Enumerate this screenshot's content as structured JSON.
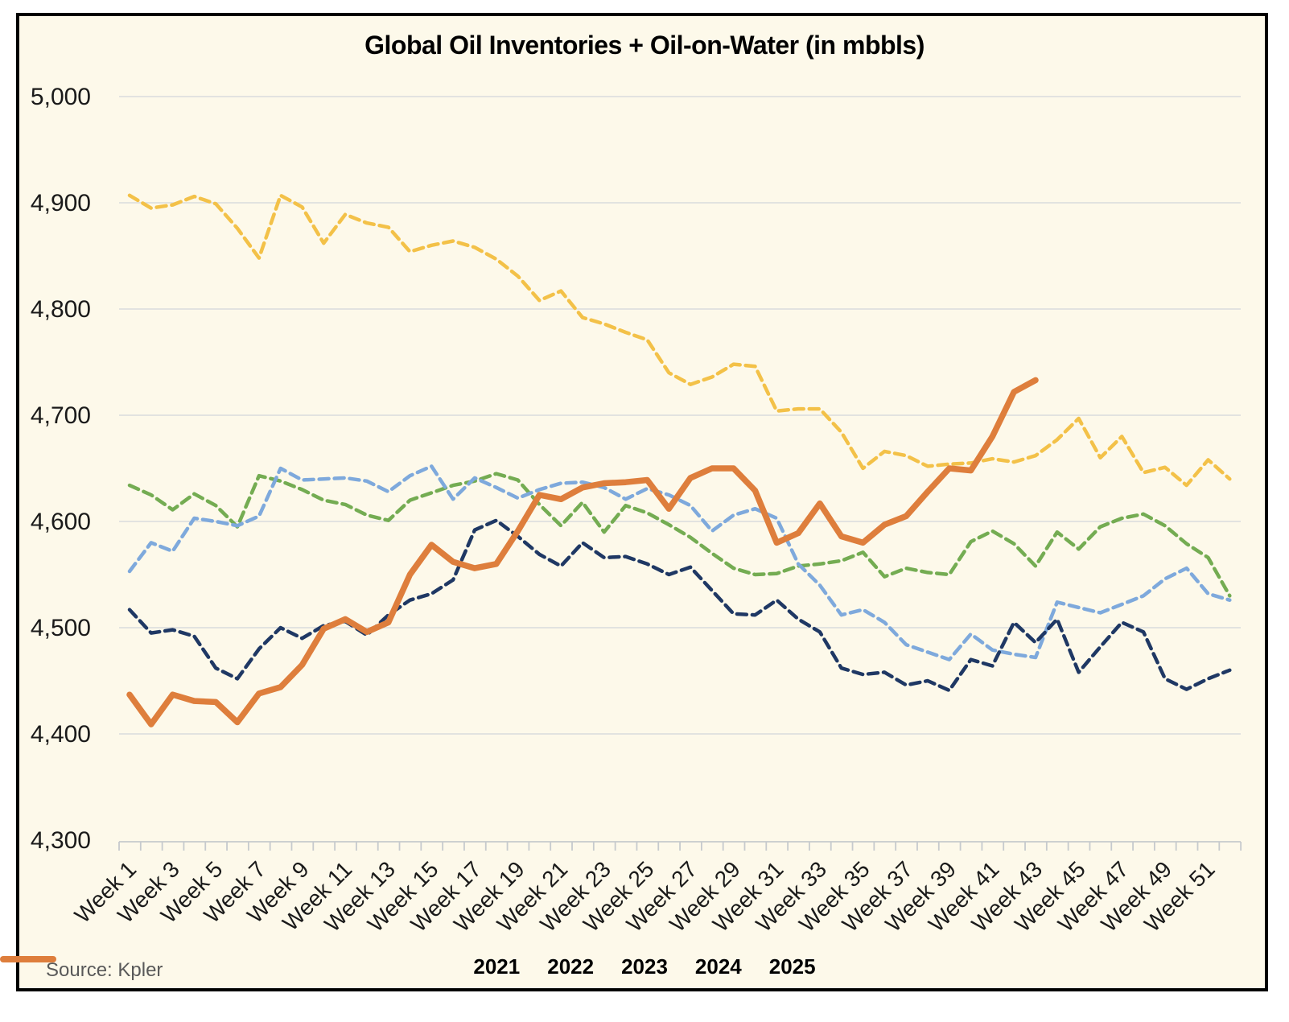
{
  "source": "Source: Kpler",
  "colors": {
    "background": "#FDF9EA",
    "frame_border": "#000000",
    "gridline": "#DADCDD",
    "axis": "#C6CACD",
    "title_text": "#000000",
    "tick_label_text": "#1A1A1A",
    "source_text": "#595959"
  },
  "chart_data": {
    "type": "line",
    "title": "Global Oil Inventories + Oil-on-Water (in mbbls)",
    "xlabel": "",
    "ylabel": "",
    "ylim": [
      4300,
      5000
    ],
    "grid": true,
    "legend_position": "bottom",
    "y_ticks": [
      4300,
      4400,
      4500,
      4600,
      4700,
      4800,
      4900,
      5000
    ],
    "y_tick_labels": [
      "4,300",
      "4,400",
      "4,500",
      "4,600",
      "4,700",
      "4,800",
      "4,900",
      "5,000"
    ],
    "x": [
      1,
      2,
      3,
      4,
      5,
      6,
      7,
      8,
      9,
      10,
      11,
      12,
      13,
      14,
      15,
      16,
      17,
      18,
      19,
      20,
      21,
      22,
      23,
      24,
      25,
      26,
      27,
      28,
      29,
      30,
      31,
      32,
      33,
      34,
      35,
      36,
      37,
      38,
      39,
      40,
      41,
      42,
      43,
      44,
      45,
      46,
      47,
      48,
      49,
      50,
      51,
      52
    ],
    "x_tick_labels": [
      "Week 1",
      "Week 3",
      "Week 5",
      "Week 7",
      "Week 9",
      "Week 11",
      "Week 13",
      "Week 15",
      "Week 17",
      "Week 19",
      "Week 21",
      "Week 23",
      "Week 25",
      "Week 27",
      "Week 29",
      "Week 31",
      "Week 33",
      "Week 35",
      "Week 37",
      "Week 39",
      "Week 41",
      "Week 43",
      "Week 45",
      "Week 47",
      "Week 49",
      "Week 51"
    ],
    "series": [
      {
        "name": "2021",
        "color": "#F3C148",
        "style": "dashed",
        "width": 4.5,
        "values": [
          4907,
          4895,
          4898,
          4906,
          4899,
          4876,
          4848,
          4907,
          4896,
          4862,
          4889,
          4881,
          4877,
          4854,
          4860,
          4864,
          4858,
          4847,
          4831,
          4808,
          4817,
          4792,
          4786,
          4778,
          4771,
          4740,
          4729,
          4736,
          4748,
          4746,
          4704,
          4706,
          4706,
          4684,
          4650,
          4666,
          4662,
          4652,
          4654,
          4655,
          4659,
          4656,
          4662,
          4677,
          4697,
          4660,
          4680,
          4646,
          4651,
          4634,
          4658,
          4640
        ]
      },
      {
        "name": "2022",
        "color": "#74AC52",
        "style": "dashed",
        "width": 4.5,
        "values": [
          4634,
          4625,
          4611,
          4626,
          4615,
          4595,
          4643,
          4638,
          4630,
          4620,
          4616,
          4606,
          4601,
          4620,
          4627,
          4634,
          4638,
          4645,
          4639,
          4616,
          4596,
          4618,
          4590,
          4615,
          4608,
          4597,
          4585,
          4570,
          4556,
          4550,
          4551,
          4558,
          4560,
          4563,
          4571,
          4548,
          4556,
          4552,
          4550,
          4581,
          4591,
          4579,
          4558,
          4590,
          4574,
          4595,
          4603,
          4607,
          4596,
          4579,
          4566,
          4530
        ]
      },
      {
        "name": "2023",
        "color": "#7EA9DC",
        "style": "dashed",
        "width": 4.5,
        "values": [
          4553,
          4580,
          4572,
          4603,
          4600,
          4596,
          4605,
          4650,
          4639,
          4640,
          4641,
          4638,
          4628,
          4643,
          4652,
          4621,
          4641,
          4632,
          4622,
          4630,
          4636,
          4637,
          4632,
          4621,
          4631,
          4625,
          4615,
          4591,
          4606,
          4612,
          4603,
          4560,
          4540,
          4512,
          4517,
          4505,
          4484,
          4477,
          4470,
          4494,
          4479,
          4475,
          4472,
          4524,
          4519,
          4514,
          4522,
          4530,
          4546,
          4556,
          4532,
          4526
        ]
      },
      {
        "name": "2024",
        "color": "#1F3864",
        "style": "dashed",
        "width": 4.5,
        "values": [
          4517,
          4495,
          4498,
          4492,
          4462,
          4452,
          4480,
          4500,
          4490,
          4502,
          4506,
          4493,
          4512,
          4526,
          4532,
          4545,
          4592,
          4601,
          4586,
          4569,
          4558,
          4580,
          4566,
          4567,
          4560,
          4550,
          4557,
          4535,
          4513,
          4512,
          4526,
          4508,
          4496,
          4462,
          4456,
          4458,
          4446,
          4450,
          4441,
          4470,
          4464,
          4505,
          4486,
          4508,
          4458,
          4482,
          4505,
          4496,
          4452,
          4442,
          4452,
          4460
        ]
      },
      {
        "name": "2025",
        "color": "#DE7E3C",
        "style": "solid",
        "width": 7.5,
        "values": [
          4437,
          4409,
          4437,
          4431,
          4430,
          4411,
          4438,
          4444,
          4465,
          4499,
          4508,
          4496,
          4505,
          4550,
          4578,
          4562,
          4556,
          4560,
          4591,
          4625,
          4621,
          4632,
          4636,
          4637,
          4639,
          4612,
          4641,
          4650,
          4650,
          4629,
          4580,
          4589,
          4617,
          4586,
          4580,
          4597,
          4605,
          4628,
          4650,
          4648,
          4680,
          4722,
          4733
        ]
      }
    ]
  }
}
